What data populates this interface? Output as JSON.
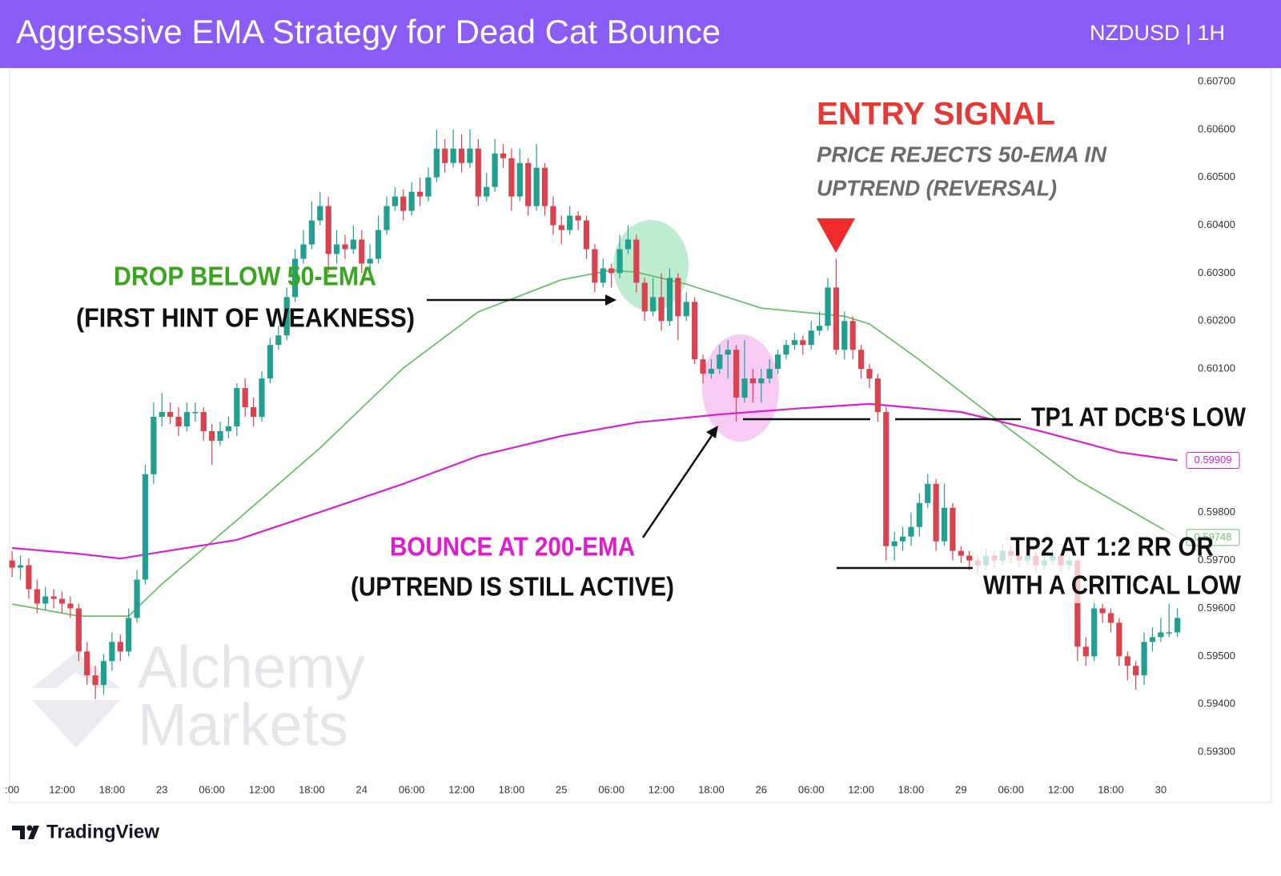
{
  "chart_data": {
    "type": "candlestick",
    "title": "Aggressive EMA Strategy for Dead Cat Bounce",
    "subtitle": "NZDUSD | 1H",
    "up_color": "#22a08f",
    "down_color": "#d9434f",
    "ohlc": [
      [
        0.597,
        0.5972,
        0.59665,
        0.59685
      ],
      [
        0.59685,
        0.5971,
        0.5966,
        0.5969
      ],
      [
        0.5969,
        0.59705,
        0.5962,
        0.5964
      ],
      [
        0.5964,
        0.5966,
        0.5959,
        0.5961
      ],
      [
        0.5961,
        0.59645,
        0.59595,
        0.59625
      ],
      [
        0.59625,
        0.5964,
        0.596,
        0.5962
      ],
      [
        0.5962,
        0.59635,
        0.5959,
        0.5961
      ],
      [
        0.5961,
        0.59625,
        0.5958,
        0.596
      ],
      [
        0.596,
        0.5961,
        0.5949,
        0.5951
      ],
      [
        0.5951,
        0.5953,
        0.5944,
        0.5946
      ],
      [
        0.5946,
        0.5948,
        0.5941,
        0.5944
      ],
      [
        0.5944,
        0.59505,
        0.5942,
        0.5949
      ],
      [
        0.5949,
        0.5955,
        0.5947,
        0.5953
      ],
      [
        0.5953,
        0.59545,
        0.5949,
        0.5951
      ],
      [
        0.5951,
        0.596,
        0.595,
        0.5958
      ],
      [
        0.5958,
        0.5968,
        0.5957,
        0.5966
      ],
      [
        0.5966,
        0.599,
        0.5965,
        0.5988
      ],
      [
        0.5988,
        0.6003,
        0.5986,
        0.6
      ],
      [
        0.6,
        0.6005,
        0.5998,
        0.6001
      ],
      [
        0.6001,
        0.6003,
        0.59985,
        0.6
      ],
      [
        0.6,
        0.6002,
        0.5996,
        0.5998
      ],
      [
        0.5998,
        0.6003,
        0.5997,
        0.6001
      ],
      [
        0.6001,
        0.6003,
        0.5999,
        0.6001
      ],
      [
        0.6001,
        0.6002,
        0.5995,
        0.5997
      ],
      [
        0.5997,
        0.59985,
        0.599,
        0.5995
      ],
      [
        0.5995,
        0.5999,
        0.5994,
        0.5997
      ],
      [
        0.5997,
        0.6,
        0.59955,
        0.5998
      ],
      [
        0.5998,
        0.6007,
        0.5996,
        0.6006
      ],
      [
        0.6006,
        0.6008,
        0.6,
        0.6002
      ],
      [
        0.6002,
        0.6004,
        0.5998,
        0.6
      ],
      [
        0.6,
        0.60095,
        0.5999,
        0.6008
      ],
      [
        0.6008,
        0.60165,
        0.6007,
        0.6015
      ],
      [
        0.6015,
        0.6019,
        0.6014,
        0.6017
      ],
      [
        0.6017,
        0.6027,
        0.6016,
        0.6025
      ],
      [
        0.6025,
        0.6035,
        0.6024,
        0.6033
      ],
      [
        0.6033,
        0.6039,
        0.6032,
        0.6036
      ],
      [
        0.6036,
        0.6045,
        0.6035,
        0.6041
      ],
      [
        0.6041,
        0.6047,
        0.604,
        0.6044
      ],
      [
        0.6044,
        0.6046,
        0.603,
        0.6034
      ],
      [
        0.6034,
        0.6039,
        0.6032,
        0.6036
      ],
      [
        0.6036,
        0.6038,
        0.6033,
        0.6035
      ],
      [
        0.6035,
        0.604,
        0.6034,
        0.6037
      ],
      [
        0.6037,
        0.6039,
        0.603,
        0.6032
      ],
      [
        0.6032,
        0.6036,
        0.603,
        0.6033
      ],
      [
        0.6033,
        0.6042,
        0.6032,
        0.6039
      ],
      [
        0.6039,
        0.6046,
        0.6038,
        0.6044
      ],
      [
        0.6044,
        0.6048,
        0.6043,
        0.6046
      ],
      [
        0.6046,
        0.60475,
        0.6041,
        0.6043
      ],
      [
        0.6043,
        0.6049,
        0.6042,
        0.6047
      ],
      [
        0.6047,
        0.605,
        0.6044,
        0.6046
      ],
      [
        0.6046,
        0.6052,
        0.6045,
        0.605
      ],
      [
        0.605,
        0.606,
        0.6049,
        0.6056
      ],
      [
        0.6056,
        0.6058,
        0.6051,
        0.6053
      ],
      [
        0.6053,
        0.606,
        0.6052,
        0.6056
      ],
      [
        0.6056,
        0.6059,
        0.6051,
        0.6053
      ],
      [
        0.6053,
        0.606,
        0.6052,
        0.6056
      ],
      [
        0.6056,
        0.6058,
        0.6044,
        0.6046
      ],
      [
        0.6046,
        0.6051,
        0.6045,
        0.6048
      ],
      [
        0.6048,
        0.6058,
        0.6047,
        0.6055
      ],
      [
        0.6055,
        0.6057,
        0.6052,
        0.6054
      ],
      [
        0.6054,
        0.6056,
        0.6043,
        0.6046
      ],
      [
        0.6046,
        0.6056,
        0.6045,
        0.6053
      ],
      [
        0.6053,
        0.6054,
        0.6042,
        0.6044
      ],
      [
        0.6044,
        0.6057,
        0.6043,
        0.6052
      ],
      [
        0.6052,
        0.6053,
        0.6042,
        0.6044
      ],
      [
        0.6044,
        0.6046,
        0.6038,
        0.604
      ],
      [
        0.604,
        0.6042,
        0.6036,
        0.6039
      ],
      [
        0.6039,
        0.6044,
        0.6038,
        0.6042
      ],
      [
        0.6042,
        0.6043,
        0.6039,
        0.6041
      ],
      [
        0.6041,
        0.6042,
        0.6033,
        0.6035
      ],
      [
        0.6035,
        0.6036,
        0.6026,
        0.6028
      ],
      [
        0.6028,
        0.6033,
        0.6027,
        0.6031
      ],
      [
        0.6031,
        0.6032,
        0.6027,
        0.603
      ],
      [
        0.603,
        0.6038,
        0.6029,
        0.6035
      ],
      [
        0.6035,
        0.604,
        0.6034,
        0.6037
      ],
      [
        0.6037,
        0.6038,
        0.6026,
        0.6028
      ],
      [
        0.6028,
        0.6029,
        0.602,
        0.6022
      ],
      [
        0.6022,
        0.6029,
        0.6021,
        0.6025
      ],
      [
        0.6025,
        0.603,
        0.6018,
        0.602
      ],
      [
        0.602,
        0.6031,
        0.6019,
        0.6029
      ],
      [
        0.6029,
        0.603,
        0.6016,
        0.6021
      ],
      [
        0.6021,
        0.6026,
        0.602,
        0.6024
      ],
      [
        0.6024,
        0.6025,
        0.6011,
        0.6012
      ],
      [
        0.6012,
        0.6013,
        0.6007,
        0.6009
      ],
      [
        0.6009,
        0.6012,
        0.6008,
        0.601
      ],
      [
        0.601,
        0.6015,
        0.6009,
        0.6013
      ],
      [
        0.6013,
        0.6016,
        0.6008,
        0.6014
      ],
      [
        0.6014,
        0.6015,
        0.5999,
        0.6004
      ],
      [
        0.6004,
        0.6016,
        0.6003,
        0.6008
      ],
      [
        0.6008,
        0.601,
        0.6003,
        0.6007
      ],
      [
        0.6007,
        0.601,
        0.6003,
        0.6008
      ],
      [
        0.6008,
        0.6012,
        0.6007,
        0.601
      ],
      [
        0.601,
        0.6014,
        0.6009,
        0.6013
      ],
      [
        0.6013,
        0.6016,
        0.6012,
        0.6015
      ],
      [
        0.6015,
        0.60175,
        0.6014,
        0.6016
      ],
      [
        0.6016,
        0.6017,
        0.6013,
        0.6015
      ],
      [
        0.6015,
        0.602,
        0.6014,
        0.6018
      ],
      [
        0.6018,
        0.6022,
        0.6017,
        0.6019
      ],
      [
        0.6019,
        0.6029,
        0.6018,
        0.6027
      ],
      [
        0.6027,
        0.6033,
        0.6013,
        0.6014
      ],
      [
        0.6014,
        0.6022,
        0.6012,
        0.602
      ],
      [
        0.602,
        0.6021,
        0.6012,
        0.6014
      ],
      [
        0.6014,
        0.6015,
        0.6008,
        0.601
      ],
      [
        0.601,
        0.6011,
        0.6006,
        0.6008
      ],
      [
        0.6008,
        0.6009,
        0.5999,
        0.6001
      ],
      [
        0.6001,
        0.6002,
        0.597,
        0.5973
      ],
      [
        0.5973,
        0.5976,
        0.597,
        0.5974
      ],
      [
        0.5974,
        0.5977,
        0.5972,
        0.5975
      ],
      [
        0.5975,
        0.598,
        0.5973,
        0.5977
      ],
      [
        0.5977,
        0.5984,
        0.5975,
        0.5982
      ],
      [
        0.5982,
        0.5988,
        0.5981,
        0.5986
      ],
      [
        0.5986,
        0.5987,
        0.5972,
        0.5974
      ],
      [
        0.5974,
        0.5986,
        0.5973,
        0.5981
      ],
      [
        0.5981,
        0.5982,
        0.597,
        0.5972
      ],
      [
        0.5972,
        0.5973,
        0.59695,
        0.5971
      ],
      [
        0.5971,
        0.5972,
        0.5968,
        0.597
      ],
      [
        0.597,
        0.5971,
        0.5967,
        0.5969
      ],
      [
        0.5969,
        0.59725,
        0.5968,
        0.5971
      ],
      [
        0.5971,
        0.5972,
        0.59685,
        0.597
      ],
      [
        0.597,
        0.59735,
        0.5969,
        0.5972
      ],
      [
        0.5972,
        0.5973,
        0.59695,
        0.5971
      ],
      [
        0.5971,
        0.5972,
        0.59685,
        0.597
      ],
      [
        0.597,
        0.59725,
        0.5969,
        0.5971
      ],
      [
        0.5971,
        0.5972,
        0.59675,
        0.5969
      ],
      [
        0.5969,
        0.59715,
        0.5968,
        0.597
      ],
      [
        0.597,
        0.59725,
        0.5969,
        0.5971
      ],
      [
        0.5971,
        0.59715,
        0.59675,
        0.5969
      ],
      [
        0.5969,
        0.5971,
        0.5968,
        0.597
      ],
      [
        0.597,
        0.59705,
        0.5949,
        0.5952
      ],
      [
        0.5952,
        0.5954,
        0.5948,
        0.595
      ],
      [
        0.595,
        0.5962,
        0.5949,
        0.596
      ],
      [
        0.596,
        0.5961,
        0.5957,
        0.5959
      ],
      [
        0.5959,
        0.596,
        0.5955,
        0.5957
      ],
      [
        0.5957,
        0.5958,
        0.5948,
        0.595
      ],
      [
        0.595,
        0.5951,
        0.5945,
        0.5948
      ],
      [
        0.5948,
        0.5949,
        0.5943,
        0.5946
      ],
      [
        0.5946,
        0.5955,
        0.5944,
        0.5953
      ],
      [
        0.5953,
        0.5956,
        0.5951,
        0.5954
      ],
      [
        0.5954,
        0.5958,
        0.5953,
        0.5955
      ],
      [
        0.5955,
        0.5961,
        0.5954,
        0.5955
      ],
      [
        0.5955,
        0.596,
        0.5954,
        0.5958
      ]
    ],
    "lines": [
      {
        "color": "#6cbf6c",
        "x": [
          0,
          8,
          14,
          18,
          27,
          37,
          47,
          56,
          66,
          72,
          75,
          81,
          90,
          100,
          103,
          109,
          119,
          128,
          140
        ],
        "values": [
          0.59609,
          0.59584,
          0.59584,
          0.59651,
          0.59784,
          0.59935,
          0.60102,
          0.60219,
          0.60286,
          0.60306,
          0.60302,
          0.60277,
          0.60227,
          0.6021,
          0.60194,
          0.60119,
          0.59985,
          0.59868,
          0.59748
        ]
      },
      {
        "color": "#d321d6",
        "x": [
          0,
          8,
          13,
          18,
          27,
          37,
          47,
          56,
          66,
          75,
          85,
          95,
          103,
          114,
          124,
          133,
          140
        ],
        "values": [
          0.59726,
          0.59714,
          0.59704,
          0.59718,
          0.59743,
          0.59801,
          0.5986,
          0.59918,
          0.5996,
          0.59988,
          0.60005,
          0.60018,
          0.60027,
          0.6001,
          0.59968,
          0.59926,
          0.59909
        ]
      }
    ],
    "xlim": [
      -0.3,
      140.9
    ],
    "xticks": [
      {
        "value": 0,
        "label": ":00"
      },
      {
        "value": 6,
        "label": "12:00"
      },
      {
        "value": 12,
        "label": "18:00"
      },
      {
        "value": 18,
        "label": "23"
      },
      {
        "value": 24,
        "label": "06:00"
      },
      {
        "value": 30,
        "label": "12:00"
      },
      {
        "value": 36,
        "label": "18:00"
      },
      {
        "value": 42,
        "label": "24"
      },
      {
        "value": 48,
        "label": "06:00"
      },
      {
        "value": 54,
        "label": "12:00"
      },
      {
        "value": 60,
        "label": "18:00"
      },
      {
        "value": 66,
        "label": "25"
      },
      {
        "value": 72,
        "label": "06:00"
      },
      {
        "value": 78,
        "label": "12:00"
      },
      {
        "value": 84,
        "label": "18:00"
      },
      {
        "value": 90,
        "label": "26"
      },
      {
        "value": 96,
        "label": "06:00"
      },
      {
        "value": 102,
        "label": "12:00"
      },
      {
        "value": 108,
        "label": "18:00"
      },
      {
        "value": 114,
        "label": "29"
      },
      {
        "value": 120,
        "label": "06:00"
      },
      {
        "value": 126,
        "label": "12:00"
      },
      {
        "value": 132,
        "label": "18:00"
      },
      {
        "value": 138,
        "label": "30"
      }
    ],
    "ylim": [
      0.5925,
      0.6072
    ],
    "yticks": [
      {
        "value": 0.607,
        "label": "0.60700"
      },
      {
        "value": 0.606,
        "label": "0.60600"
      },
      {
        "value": 0.605,
        "label": "0.60500"
      },
      {
        "value": 0.604,
        "label": "0.60400"
      },
      {
        "value": 0.603,
        "label": "0.60300"
      },
      {
        "value": 0.602,
        "label": "0.60200"
      },
      {
        "value": 0.601,
        "label": "0.60100"
      },
      {
        "value": 0.598,
        "label": "0.59800"
      },
      {
        "value": 0.597,
        "label": "0.59700"
      },
      {
        "value": 0.596,
        "label": "0.59600"
      },
      {
        "value": 0.595,
        "label": "0.59500"
      },
      {
        "value": 0.594,
        "label": "0.59400"
      },
      {
        "value": 0.593,
        "label": "0.59300"
      }
    ],
    "grid": false,
    "annotations": [
      "ENTRY SIGNAL",
      "PRICE REJECTS 50-EMA IN",
      "UPTREND (REVERSAL)",
      "DROP BELOW 50-EMA",
      "(FIRST HINT OF WEAKNESS)",
      "BOUNCE AT 200-EMA",
      "(UPTREND IS STILL ACTIVE)",
      "TP1 AT DCB‘S LOW",
      "TP2 AT 1:2 RR OR",
      "WITH A CRITICAL LOW"
    ],
    "watermark": [
      "Alchemy",
      "Markets"
    ],
    "footer": "TradingView"
  }
}
